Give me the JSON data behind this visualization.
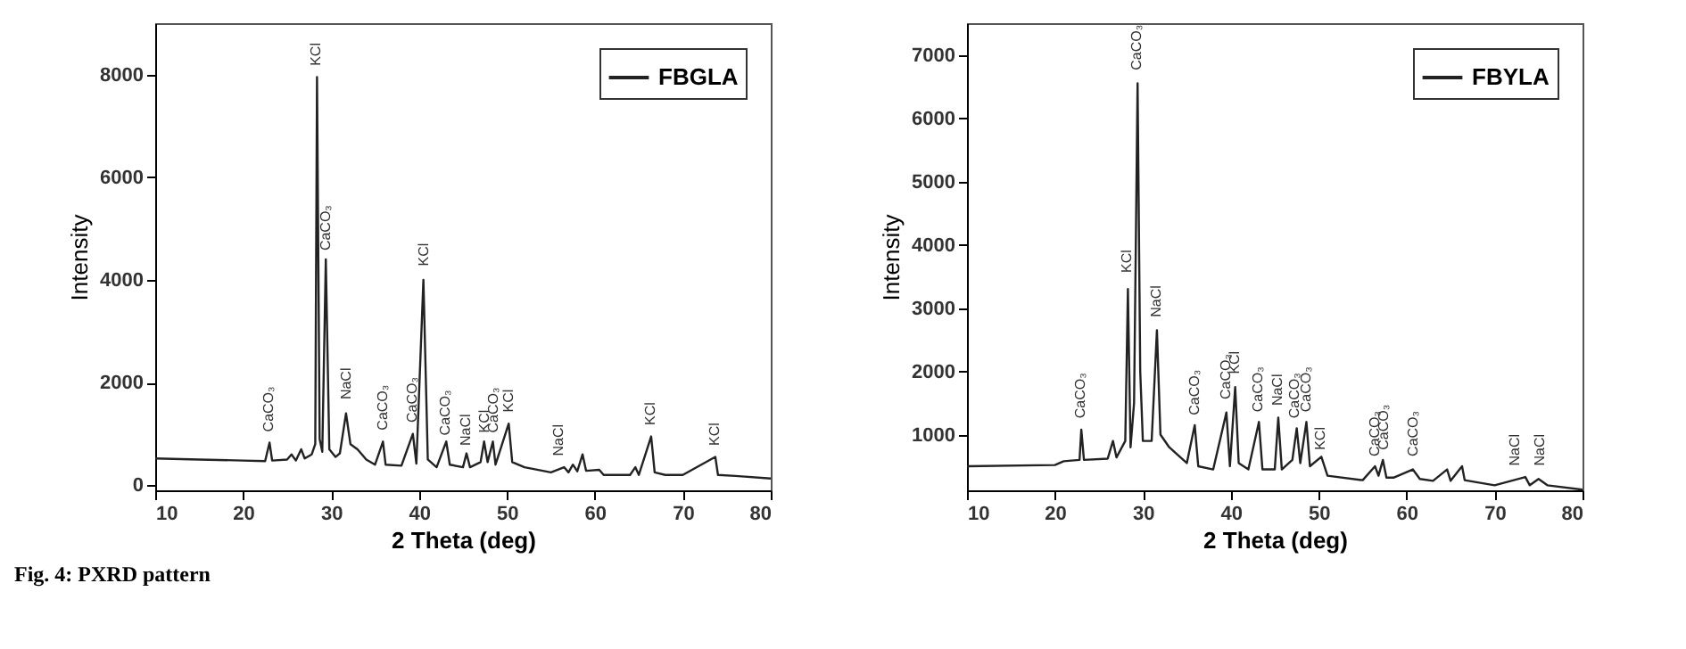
{
  "chart_data": [
    {
      "type": "line",
      "xlabel": "2 Theta (deg)",
      "ylabel": "Intensity",
      "xlim": [
        10,
        80
      ],
      "xticks": [
        10,
        20,
        30,
        40,
        50,
        60,
        70,
        80
      ],
      "ylim": [
        -100,
        9000
      ],
      "yticks": [
        0,
        2000,
        4000,
        6000,
        8000
      ],
      "grid": false,
      "legend": "top right",
      "x": [
        10,
        15,
        20,
        22.5,
        23,
        23.3,
        25,
        25.5,
        26,
        26.6,
        27,
        27.8,
        28.2,
        28.4,
        28.7,
        29.0,
        29.4,
        29.8,
        30.5,
        31,
        31.7,
        32.2,
        33,
        34,
        35,
        35.9,
        36.2,
        38,
        39.3,
        39.7,
        40.5,
        41,
        42,
        43.1,
        43.5,
        45,
        45.4,
        45.8,
        47,
        47.4,
        47.8,
        48.4,
        48.7,
        50.2,
        50.6,
        52,
        55,
        56.5,
        57,
        57.5,
        58,
        58.6,
        59,
        60.5,
        61,
        64,
        64.6,
        65,
        66.4,
        66.8,
        68,
        70,
        73.7,
        74,
        76,
        80
      ],
      "series": [
        {
          "name": "FBGLA",
          "color": "#222222",
          "values": [
            520,
            500,
            480,
            470,
            830,
            480,
            500,
            600,
            480,
            700,
            520,
            600,
            800,
            7950,
            900,
            650,
            4400,
            700,
            550,
            620,
            1400,
            800,
            700,
            500,
            400,
            850,
            400,
            380,
            1000,
            420,
            4000,
            500,
            350,
            850,
            400,
            350,
            620,
            350,
            450,
            850,
            450,
            850,
            400,
            1200,
            450,
            350,
            250,
            350,
            250,
            400,
            270,
            600,
            280,
            300,
            200,
            200,
            350,
            200,
            950,
            250,
            200,
            200,
            550,
            200,
            180,
            130
          ]
        }
      ],
      "annotations": [
        {
          "text": "CaCO₃",
          "x": 23,
          "y": 970
        },
        {
          "text": "KCl",
          "x": 28.4,
          "y": 8100
        },
        {
          "text": "CaCO₃",
          "x": 29.5,
          "y": 4500
        },
        {
          "text": "NaCl",
          "x": 31.8,
          "y": 1600
        },
        {
          "text": "CaCO₃",
          "x": 36,
          "y": 1000
        },
        {
          "text": "CaCO₃",
          "x": 39.3,
          "y": 1150
        },
        {
          "text": "KCl",
          "x": 40.6,
          "y": 4200
        },
        {
          "text": "CaCO₃",
          "x": 43.1,
          "y": 900
        },
        {
          "text": "NaCl",
          "x": 45.4,
          "y": 700
        },
        {
          "text": "KCl",
          "x": 47.5,
          "y": 950
        },
        {
          "text": "CaCO₃",
          "x": 48.5,
          "y": 950
        },
        {
          "text": "KCl",
          "x": 50.3,
          "y": 1350
        },
        {
          "text": "NaCl",
          "x": 56,
          "y": 500
        },
        {
          "text": "KCl",
          "x": 66.4,
          "y": 1100
        },
        {
          "text": "KCl",
          "x": 73.7,
          "y": 700
        },
        "Fig. 4: PXRD pattern"
      ]
    },
    {
      "type": "line",
      "xlabel": "2 Theta (deg)",
      "ylabel": "Intensity",
      "xlim": [
        10,
        80
      ],
      "xticks": [
        10,
        20,
        30,
        40,
        50,
        60,
        70,
        80
      ],
      "ylim": [
        120,
        7500
      ],
      "yticks": [
        1000,
        2000,
        3000,
        4000,
        5000,
        6000,
        7000
      ],
      "grid": false,
      "legend": "top right",
      "x": [
        10,
        20,
        21,
        22.8,
        23,
        23.3,
        26,
        26.6,
        27,
        28,
        28.3,
        28.6,
        29,
        29.4,
        29.7,
        30,
        31,
        31.6,
        32,
        33,
        35,
        35.9,
        36.3,
        38,
        39.5,
        39.9,
        40.5,
        40.9,
        42,
        43.2,
        43.6,
        45,
        45.4,
        45.8,
        47,
        47.5,
        47.9,
        48.6,
        49,
        50.3,
        51,
        55,
        56.4,
        56.8,
        57.3,
        57.7,
        58.5,
        60.7,
        61.5,
        63,
        64.6,
        65,
        66.3,
        66.6,
        70,
        73.5,
        74,
        75,
        76,
        80
      ],
      "series": [
        {
          "name": "FBYLA",
          "color": "#222222",
          "values": [
            500,
            520,
            580,
            600,
            1080,
            600,
            620,
            900,
            640,
            900,
            3300,
            800,
            1500,
            6550,
            2000,
            900,
            900,
            2650,
            1000,
            800,
            550,
            1150,
            500,
            450,
            1350,
            500,
            1750,
            550,
            450,
            1200,
            450,
            450,
            1270,
            450,
            600,
            1100,
            550,
            1200,
            500,
            650,
            350,
            280,
            500,
            350,
            600,
            320,
            320,
            450,
            300,
            270,
            450,
            270,
            500,
            280,
            200,
            330,
            200,
            300,
            200,
            130
          ]
        }
      ],
      "annotations": [
        {
          "text": "CaCO₃",
          "x": 23,
          "y": 1200
        },
        {
          "text": "KCl",
          "x": 28.3,
          "y": 3500
        },
        {
          "text": "CaCO₃",
          "x": 29.4,
          "y": 6700
        },
        {
          "text": "NaCl",
          "x": 31.6,
          "y": 2800
        },
        {
          "text": "CaCO₃",
          "x": 36,
          "y": 1250
        },
        {
          "text": "CaCO₃",
          "x": 39.5,
          "y": 1500
        },
        {
          "text": "KCl",
          "x": 40.5,
          "y": 1900
        },
        {
          "text": "CaCO₃",
          "x": 43.2,
          "y": 1300
        },
        {
          "text": "NaCl",
          "x": 45.4,
          "y": 1400
        },
        {
          "text": "CaCO₃",
          "x": 47.3,
          "y": 1200
        },
        {
          "text": "CaCO₃",
          "x": 48.7,
          "y": 1300
        },
        {
          "text": "KCl",
          "x": 50.3,
          "y": 700
        },
        {
          "text": "CaCO₃",
          "x": 56.5,
          "y": 600
        },
        {
          "text": "CaCO₃",
          "x": 57.5,
          "y": 700
        },
        {
          "text": "CaCO₃",
          "x": 60.8,
          "y": 600
        },
        {
          "text": "NaCl",
          "x": 72.4,
          "y": 450
        },
        {
          "text": "NaCl",
          "x": 75.2,
          "y": 450
        }
      ]
    }
  ]
}
